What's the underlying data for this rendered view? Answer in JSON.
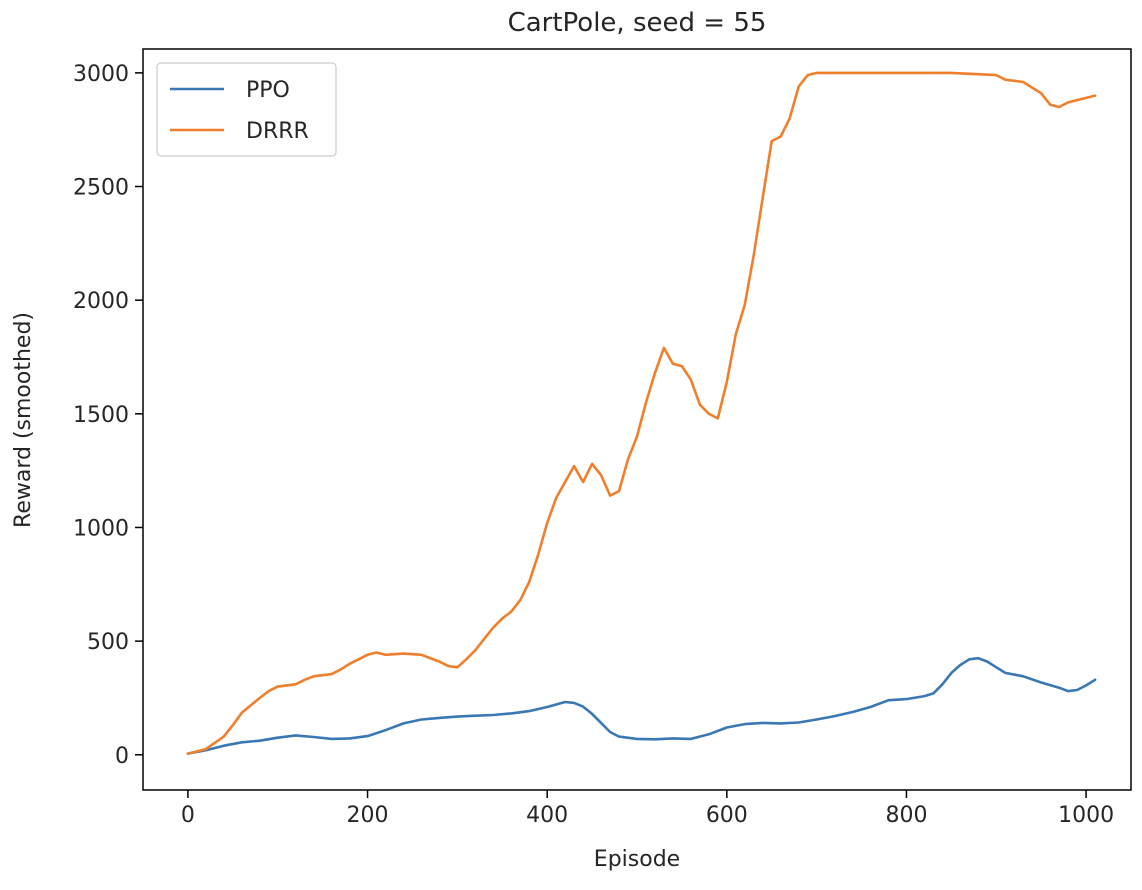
{
  "chart_data": {
    "type": "line",
    "title": "CartPole, seed = 55",
    "xlabel": "Episode",
    "ylabel": "Reward (smoothed)",
    "xlim": [
      -50,
      1050
    ],
    "ylim": [
      -155,
      3105
    ],
    "xticks": [
      0,
      200,
      400,
      600,
      800,
      1000
    ],
    "yticks": [
      0,
      500,
      1000,
      1500,
      2000,
      2500,
      3000
    ],
    "grid": false,
    "legend": "top-left",
    "series": [
      {
        "name": "PPO",
        "color": "#3a78b4",
        "points": [
          [
            0,
            5
          ],
          [
            20,
            20
          ],
          [
            40,
            40
          ],
          [
            60,
            55
          ],
          [
            80,
            62
          ],
          [
            100,
            75
          ],
          [
            120,
            85
          ],
          [
            140,
            78
          ],
          [
            160,
            70
          ],
          [
            180,
            72
          ],
          [
            200,
            82
          ],
          [
            220,
            108
          ],
          [
            240,
            138
          ],
          [
            260,
            155
          ],
          [
            280,
            162
          ],
          [
            300,
            168
          ],
          [
            320,
            172
          ],
          [
            340,
            175
          ],
          [
            360,
            182
          ],
          [
            380,
            192
          ],
          [
            400,
            210
          ],
          [
            420,
            232
          ],
          [
            430,
            228
          ],
          [
            440,
            212
          ],
          [
            450,
            180
          ],
          [
            460,
            140
          ],
          [
            470,
            100
          ],
          [
            480,
            80
          ],
          [
            500,
            70
          ],
          [
            520,
            68
          ],
          [
            540,
            72
          ],
          [
            560,
            70
          ],
          [
            580,
            90
          ],
          [
            600,
            120
          ],
          [
            620,
            135
          ],
          [
            640,
            140
          ],
          [
            660,
            138
          ],
          [
            680,
            142
          ],
          [
            700,
            155
          ],
          [
            720,
            170
          ],
          [
            740,
            188
          ],
          [
            760,
            210
          ],
          [
            780,
            240
          ],
          [
            800,
            245
          ],
          [
            820,
            258
          ],
          [
            830,
            270
          ],
          [
            840,
            310
          ],
          [
            850,
            360
          ],
          [
            860,
            395
          ],
          [
            870,
            420
          ],
          [
            880,
            425
          ],
          [
            890,
            410
          ],
          [
            900,
            385
          ],
          [
            910,
            360
          ],
          [
            930,
            345
          ],
          [
            950,
            318
          ],
          [
            970,
            295
          ],
          [
            980,
            280
          ],
          [
            990,
            285
          ],
          [
            1000,
            305
          ],
          [
            1010,
            330
          ]
        ]
      },
      {
        "name": "DRRR",
        "color": "#f07f2c",
        "points": [
          [
            0,
            5
          ],
          [
            20,
            25
          ],
          [
            40,
            80
          ],
          [
            50,
            130
          ],
          [
            60,
            185
          ],
          [
            80,
            250
          ],
          [
            90,
            280
          ],
          [
            100,
            300
          ],
          [
            120,
            310
          ],
          [
            130,
            330
          ],
          [
            140,
            345
          ],
          [
            160,
            355
          ],
          [
            170,
            375
          ],
          [
            180,
            400
          ],
          [
            190,
            420
          ],
          [
            200,
            440
          ],
          [
            210,
            450
          ],
          [
            220,
            440
          ],
          [
            240,
            445
          ],
          [
            260,
            440
          ],
          [
            280,
            410
          ],
          [
            290,
            390
          ],
          [
            300,
            385
          ],
          [
            310,
            420
          ],
          [
            320,
            460
          ],
          [
            330,
            510
          ],
          [
            340,
            560
          ],
          [
            350,
            600
          ],
          [
            360,
            630
          ],
          [
            370,
            680
          ],
          [
            380,
            760
          ],
          [
            390,
            880
          ],
          [
            400,
            1020
          ],
          [
            410,
            1130
          ],
          [
            420,
            1200
          ],
          [
            430,
            1270
          ],
          [
            440,
            1200
          ],
          [
            450,
            1280
          ],
          [
            460,
            1230
          ],
          [
            470,
            1140
          ],
          [
            480,
            1160
          ],
          [
            490,
            1300
          ],
          [
            500,
            1400
          ],
          [
            510,
            1550
          ],
          [
            520,
            1680
          ],
          [
            530,
            1790
          ],
          [
            540,
            1720
          ],
          [
            550,
            1710
          ],
          [
            560,
            1650
          ],
          [
            570,
            1540
          ],
          [
            580,
            1500
          ],
          [
            590,
            1480
          ],
          [
            600,
            1640
          ],
          [
            610,
            1850
          ],
          [
            620,
            1980
          ],
          [
            630,
            2200
          ],
          [
            640,
            2450
          ],
          [
            650,
            2700
          ],
          [
            660,
            2720
          ],
          [
            670,
            2800
          ],
          [
            680,
            2940
          ],
          [
            690,
            2990
          ],
          [
            700,
            3000
          ],
          [
            750,
            3000
          ],
          [
            800,
            3000
          ],
          [
            850,
            3000
          ],
          [
            900,
            2990
          ],
          [
            910,
            2970
          ],
          [
            930,
            2960
          ],
          [
            950,
            2910
          ],
          [
            960,
            2860
          ],
          [
            970,
            2850
          ],
          [
            980,
            2870
          ],
          [
            990,
            2880
          ],
          [
            1000,
            2890
          ],
          [
            1010,
            2900
          ]
        ]
      }
    ]
  }
}
